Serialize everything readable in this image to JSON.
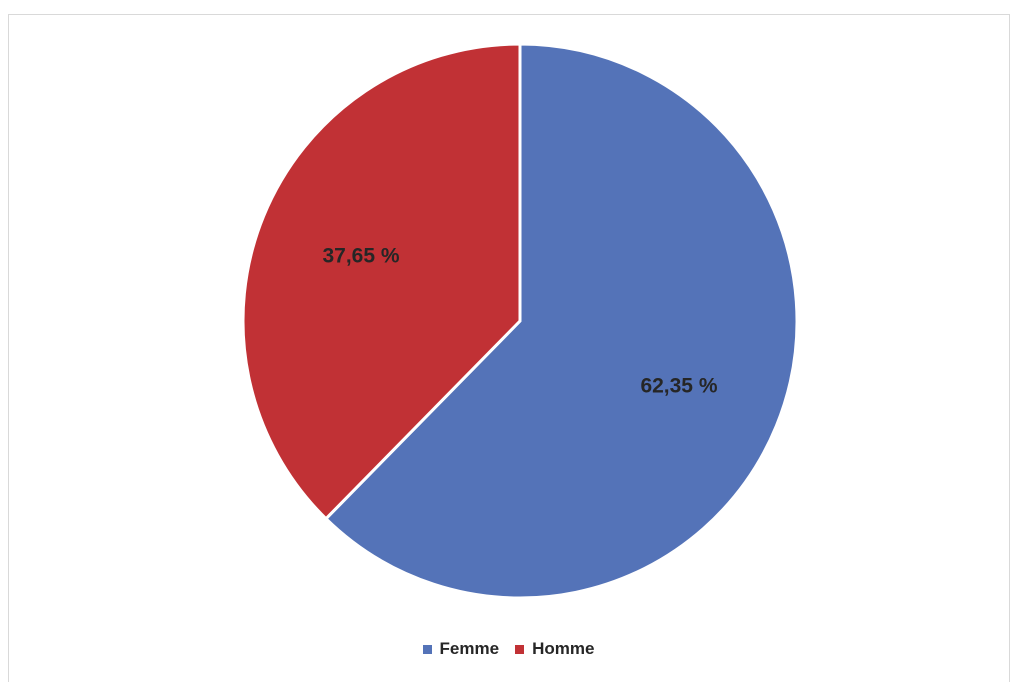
{
  "chart_data": {
    "type": "pie",
    "categories": [
      "Femme",
      "Homme"
    ],
    "values": [
      62.35,
      37.65
    ],
    "data_labels": [
      "62,35 %",
      "37,65 %"
    ],
    "colors": [
      "#5473b8",
      "#c13135"
    ],
    "legend": {
      "placement": "bottom",
      "entries": [
        "Femme",
        "Homme"
      ]
    }
  }
}
